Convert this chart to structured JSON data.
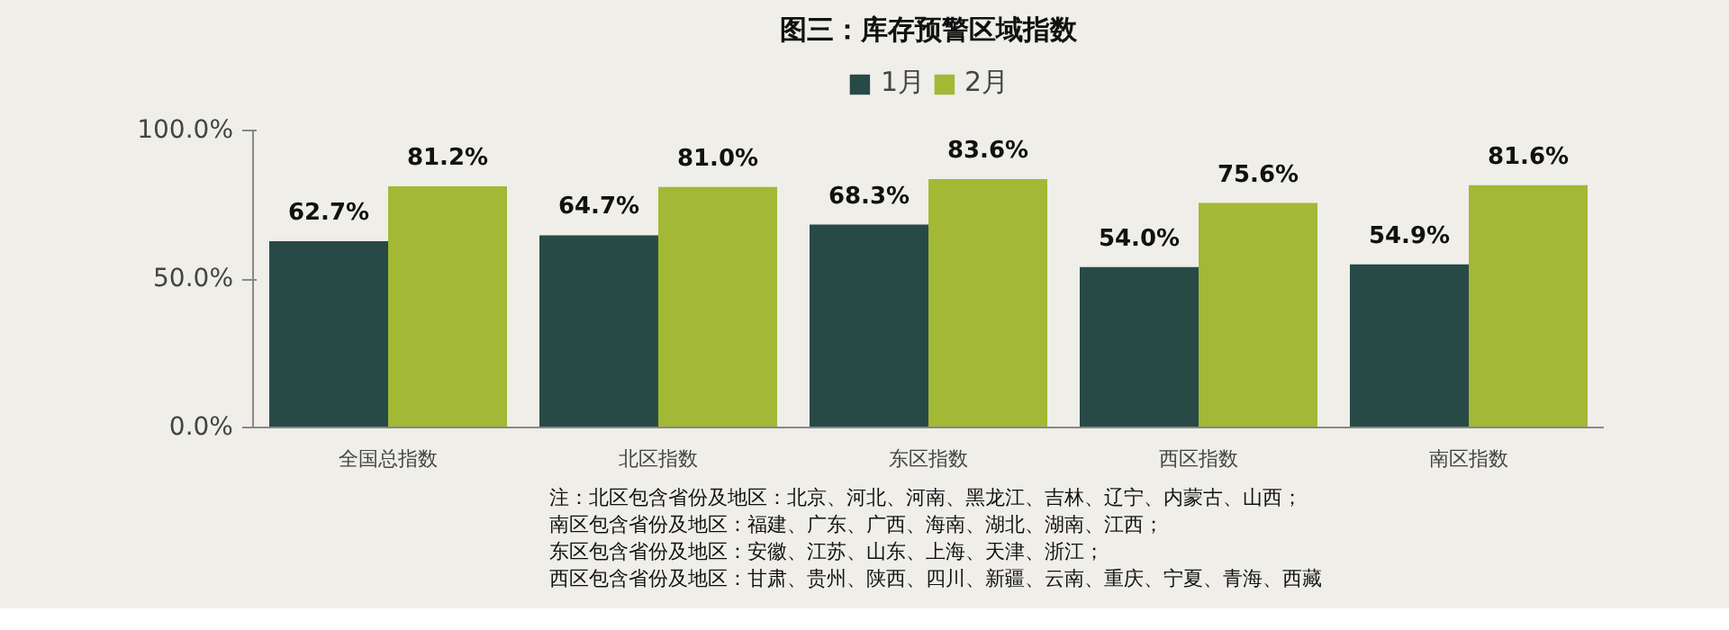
{
  "chart_data": {
    "type": "bar",
    "title": "图三：库存预警区域指数",
    "categories": [
      "全国总指数",
      "北区指数",
      "东区指数",
      "西区指数",
      "南区指数"
    ],
    "series": [
      {
        "name": "1月",
        "color": "#274a47",
        "values": [
          62.7,
          64.7,
          68.3,
          54.0,
          54.9
        ],
        "value_labels": [
          "62.7%",
          "64.7%",
          "68.3%",
          "54.0%",
          "54.9%"
        ]
      },
      {
        "name": "2月",
        "color": "#a3b834",
        "values": [
          81.2,
          81.0,
          83.6,
          75.6,
          81.6
        ],
        "value_labels": [
          "81.2%",
          "81.0%",
          "83.6%",
          "75.6%",
          "81.6%"
        ]
      }
    ],
    "ylim": [
      0,
      100
    ],
    "yticks": [
      {
        "value": 0,
        "label": "0.0%"
      },
      {
        "value": 50,
        "label": "50.0%"
      },
      {
        "value": 100,
        "label": "100.0%"
      }
    ],
    "grid": false,
    "legend": "top",
    "annotations": [
      "注：北区包含省份及地区：北京、河北、河南、黑龙江、吉林、辽宁、内蒙古、山西；",
      "南区包含省份及地区：福建、广东、广西、海南、湖北、湖南、江西；",
      "东区包含省份及地区：安徽、江苏、山东、上海、天津、浙江；",
      "西区包含省份及地区：甘肃、贵州、陕西、四川、新疆、云南、重庆、宁夏、青海、西藏"
    ]
  }
}
